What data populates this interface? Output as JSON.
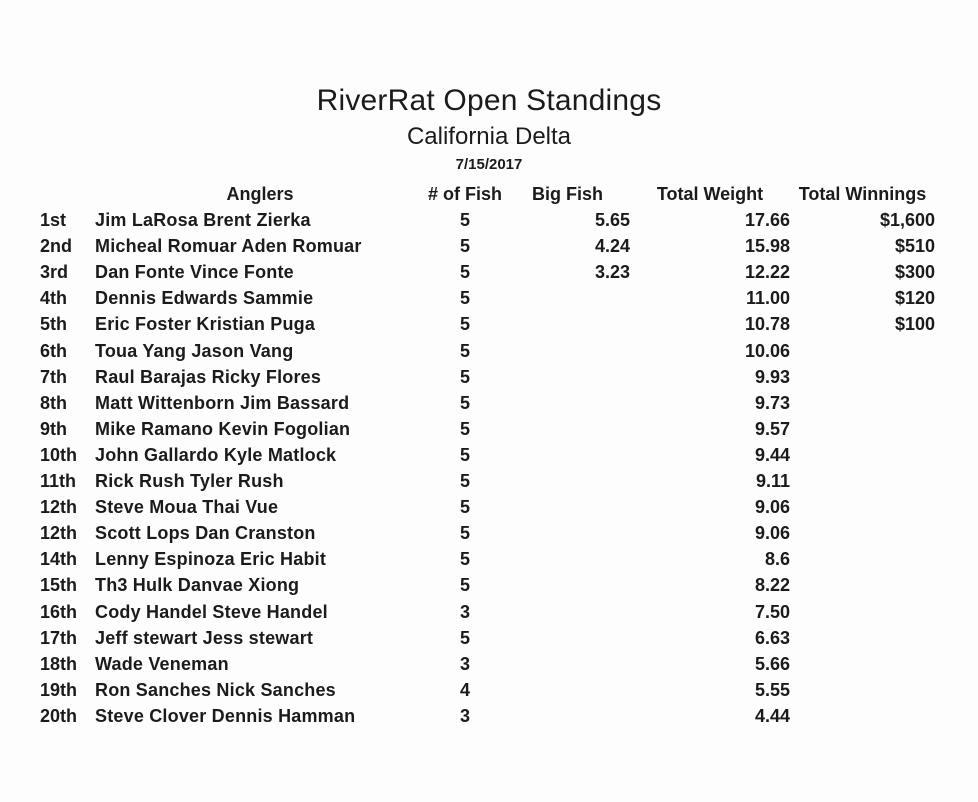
{
  "page": {
    "title": "RiverRat Open Standings",
    "subtitle": "California Delta",
    "date": "7/15/2017"
  },
  "table": {
    "columns": [
      "",
      "Anglers",
      "# of Fish",
      "Big Fish",
      "Total Weight",
      "Total Winnings"
    ],
    "rows": [
      {
        "rank": "1st",
        "anglers": "Jim LaRosa Brent Zierka",
        "fish": "5",
        "big_fish": "5.65",
        "total_weight": "17.66",
        "winnings": "$1,600",
        "fish_bold": true
      },
      {
        "rank": "2nd",
        "anglers": "Micheal Romuar Aden Romuar",
        "fish": "5",
        "big_fish": "4.24",
        "total_weight": "15.98",
        "winnings": "$510",
        "fish_bold": true
      },
      {
        "rank": "3rd",
        "anglers": "Dan Fonte Vince Fonte",
        "fish": "5",
        "big_fish": "3.23",
        "total_weight": "12.22",
        "winnings": "$300",
        "fish_bold": true
      },
      {
        "rank": "4th",
        "anglers": "Dennis Edwards Sammie",
        "fish": "5",
        "big_fish": "",
        "total_weight": "11.00",
        "winnings": "$120",
        "fish_bold": true
      },
      {
        "rank": "5th",
        "anglers": "Eric Foster Kristian Puga",
        "fish": "5",
        "big_fish": "",
        "total_weight": "10.78",
        "winnings": "$100",
        "fish_bold": true
      },
      {
        "rank": "6th",
        "anglers": "Toua Yang Jason Vang",
        "fish": "5",
        "big_fish": "",
        "total_weight": "10.06",
        "winnings": "",
        "fish_bold": true
      },
      {
        "rank": "7th",
        "anglers": "Raul Barajas Ricky Flores",
        "fish": "5",
        "big_fish": "",
        "total_weight": "9.93",
        "winnings": "",
        "fish_bold": true
      },
      {
        "rank": "8th",
        "anglers": "Matt Wittenborn Jim Bassard",
        "fish": "5",
        "big_fish": "",
        "total_weight": "9.73",
        "winnings": "",
        "fish_bold": true
      },
      {
        "rank": "9th",
        "anglers": "Mike Ramano Kevin Fogolian",
        "fish": "5",
        "big_fish": "",
        "total_weight": "9.57",
        "winnings": "",
        "fish_bold": true
      },
      {
        "rank": "10th",
        "anglers": "John Gallardo Kyle Matlock",
        "fish": "5",
        "big_fish": "",
        "total_weight": "9.44",
        "winnings": "",
        "fish_bold": true
      },
      {
        "rank": "11th",
        "anglers": "Rick Rush Tyler Rush",
        "fish": "5",
        "big_fish": "",
        "total_weight": "9.11",
        "winnings": "",
        "fish_bold": true
      },
      {
        "rank": "12th",
        "anglers": "Steve Moua Thai Vue",
        "fish": "5",
        "big_fish": "",
        "total_weight": "9.06",
        "winnings": "",
        "fish_bold": true
      },
      {
        "rank": "12th",
        "anglers": "Scott Lops Dan Cranston",
        "fish": "5",
        "big_fish": "",
        "total_weight": "9.06",
        "winnings": "",
        "fish_bold": true
      },
      {
        "rank": "14th",
        "anglers": "Lenny Espinoza Eric Habit",
        "fish": "5",
        "big_fish": "",
        "total_weight": "8.6",
        "winnings": "",
        "fish_bold": true
      },
      {
        "rank": "15th",
        "anglers": "Th3 Hulk Danvae Xiong",
        "fish": "5",
        "big_fish": "",
        "total_weight": "8.22",
        "winnings": "",
        "fish_bold": true
      },
      {
        "rank": "16th",
        "anglers": "Cody Handel Steve Handel",
        "fish": "3",
        "big_fish": "",
        "total_weight": "7.50",
        "winnings": "",
        "fish_bold": false
      },
      {
        "rank": "17th",
        "anglers": "Jeff stewart Jess stewart",
        "fish": "5",
        "big_fish": "",
        "total_weight": "6.63",
        "winnings": "",
        "fish_bold": true
      },
      {
        "rank": "18th",
        "anglers": "Wade Veneman",
        "fish": "3",
        "big_fish": "",
        "total_weight": "5.66",
        "winnings": "",
        "fish_bold": false
      },
      {
        "rank": "19th",
        "anglers": "Ron Sanches Nick Sanches",
        "fish": "4",
        "big_fish": "",
        "total_weight": "5.55",
        "winnings": "",
        "fish_bold": false
      },
      {
        "rank": "20th",
        "anglers": "Steve Clover Dennis Hamman",
        "fish": "3",
        "big_fish": "",
        "total_weight": "4.44",
        "winnings": "",
        "fish_bold": false
      }
    ]
  }
}
